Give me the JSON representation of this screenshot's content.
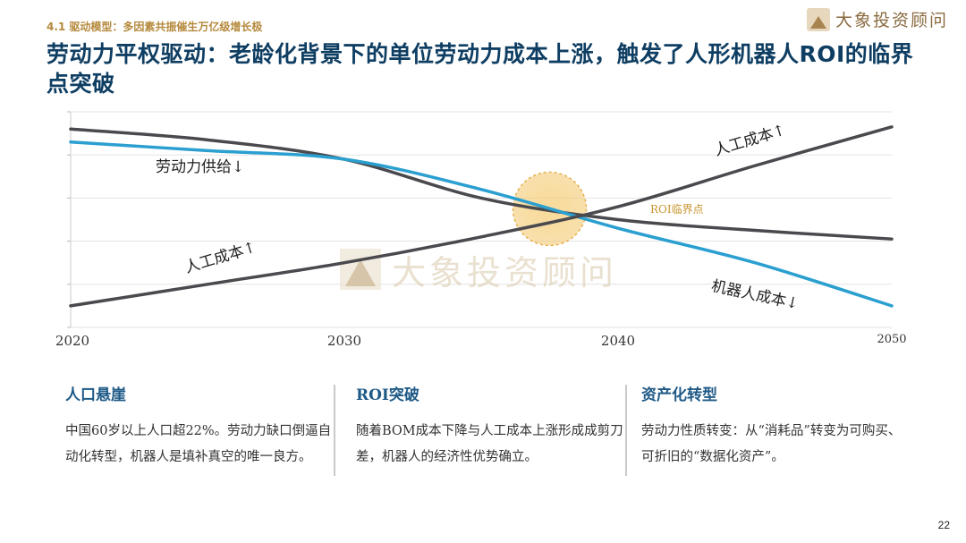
{
  "header": {
    "section_tag": "4.1 驱动模型：多因素共振催生万亿级增长极",
    "title": "劳动力平权驱动：老龄化背景下的单位劳动力成本上涨，触发了人形机器人ROI的临界点突破"
  },
  "brand": {
    "name": "大象投资顾问",
    "icon": "elephant-mountain-logo-icon"
  },
  "watermark": {
    "text": "大象投资顾问"
  },
  "chart_data": {
    "type": "line",
    "title": "",
    "xlabel": "",
    "ylabel": "",
    "x_ticks": [
      "2020",
      "2030",
      "2040",
      "2050"
    ],
    "xlim": [
      2020,
      2050
    ],
    "ylim": [
      0,
      100
    ],
    "grid": "horizontal",
    "series": [
      {
        "name": "劳动力供给↓",
        "color": "#4a4a4e",
        "x": [
          2020,
          2025,
          2030,
          2035,
          2040,
          2045,
          2050
        ],
        "y": [
          92,
          87,
          78,
          60,
          50,
          45,
          41
        ]
      },
      {
        "name": "机器人成本↓",
        "color": "#2a9fd0",
        "x": [
          2020,
          2025,
          2030,
          2035,
          2040,
          2045,
          2050
        ],
        "y": [
          86,
          82,
          78,
          64,
          46,
          30,
          10
        ]
      },
      {
        "name": "人工成本↑",
        "color": "#4a4a4e",
        "x": [
          2020,
          2025,
          2030,
          2035,
          2040,
          2045,
          2050
        ],
        "y": [
          10,
          20,
          30,
          42,
          56,
          75,
          93
        ]
      }
    ],
    "annotations": [
      {
        "text": "劳动力供给↓"
      },
      {
        "text": "人工成本↑"
      },
      {
        "text": "人工成本↑"
      },
      {
        "text": "机器人成本↓"
      },
      {
        "text": "ROI临界点"
      }
    ],
    "highlight": {
      "label": "ROI临界点",
      "x": 2037.5,
      "y": 55,
      "color": "#f3c66a"
    }
  },
  "panels": [
    {
      "title": "人口悬崖",
      "body": "中国60岁以上人口超22%。劳动力缺口倒逼自动化转型，机器人是填补真空的唯一良方。"
    },
    {
      "title": "ROI突破",
      "body": "随着BOM成本下降与人工成本上涨形成成剪刀差，机器人的经济性优势确立。"
    },
    {
      "title": "资产化转型",
      "body": "劳动力性质转变：从“消耗品”转变为可购买、可折旧的“数据化资产”。"
    }
  ],
  "page_number": "22"
}
